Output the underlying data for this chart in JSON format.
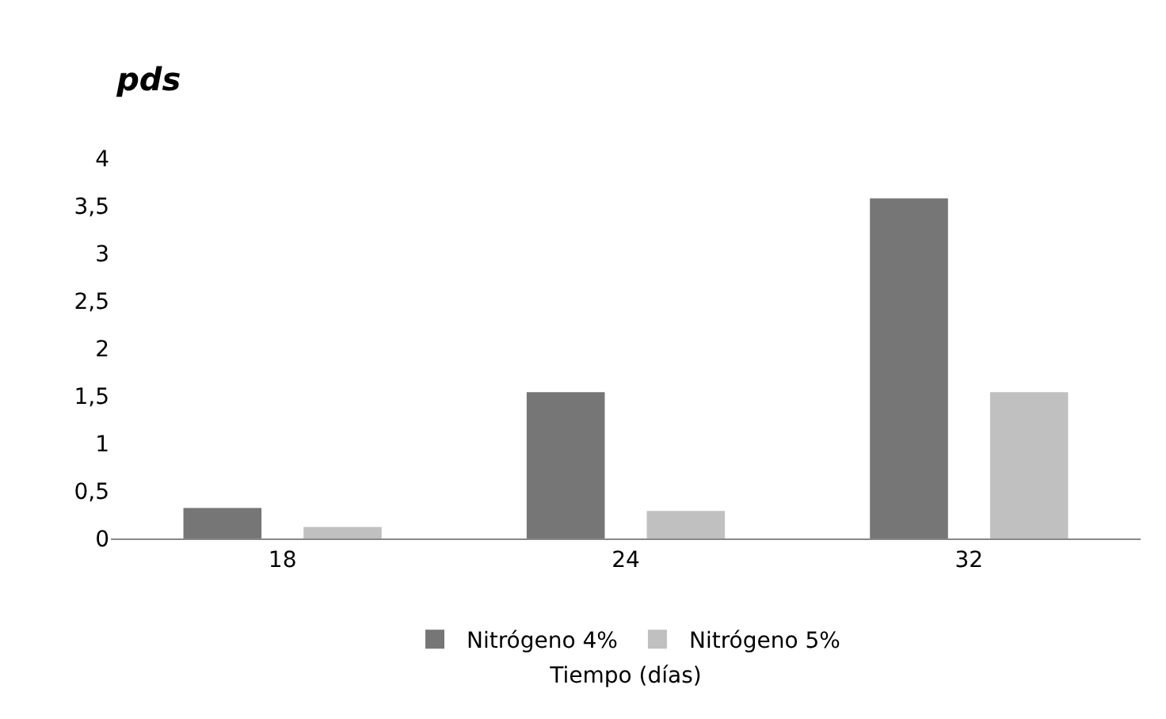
{
  "chart_data": {
    "type": "bar",
    "title": "pds",
    "xlabel": "Tiempo (días)",
    "categories": [
      "18",
      "24",
      "32"
    ],
    "series": [
      {
        "name": "Nitrógeno 4%",
        "color": "#767676",
        "values": [
          0.32,
          1.54,
          3.58
        ]
      },
      {
        "name": "Nitrógeno 5%",
        "color": "#c0c0c0",
        "values": [
          0.12,
          0.29,
          1.54
        ]
      }
    ],
    "ylim": [
      0,
      4
    ],
    "yticks": [
      0,
      {
        "value": 0.5,
        "label": "0,5"
      },
      1,
      {
        "value": 1.5,
        "label": "1,5"
      },
      2,
      {
        "value": 2.5,
        "label": "2,5"
      },
      3,
      {
        "value": 3.5,
        "label": "3,5"
      },
      4
    ],
    "grid": false,
    "legend": "bottom"
  }
}
